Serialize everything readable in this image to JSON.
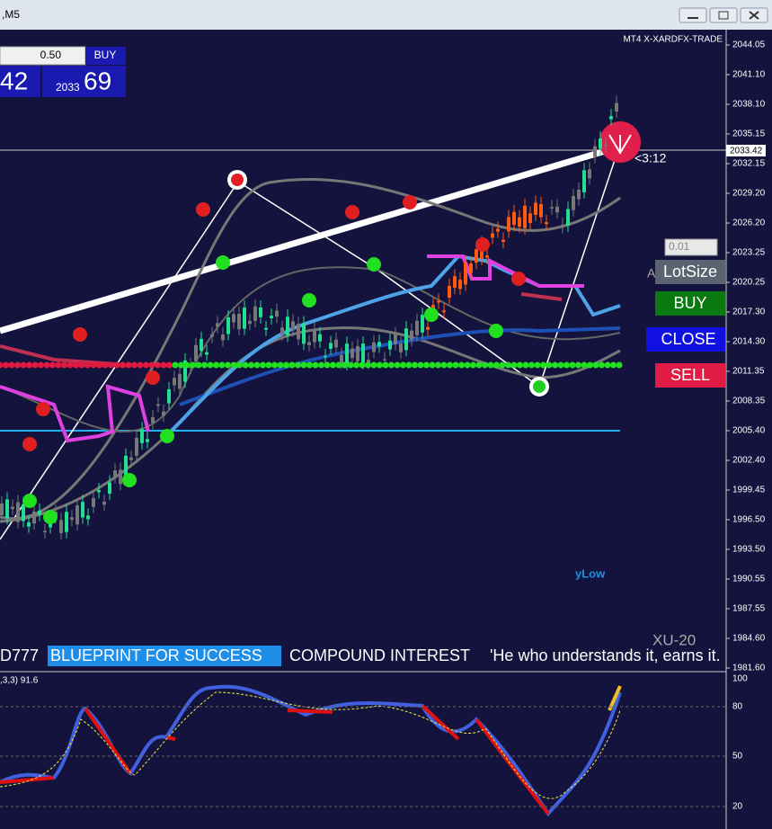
{
  "window": {
    "title": ",M5"
  },
  "trade_panel": {
    "lot": "0.50",
    "buy": "BUY",
    "bid": "42",
    "ask_prefix": "2033",
    "ask": "69"
  },
  "chart": {
    "label": "MT4 X-XARDFX-TRADE",
    "current_price": "2033.42",
    "timer": "<3:12",
    "ylow": "yLow",
    "symbol": "XU-20"
  },
  "price_axis": [
    "2044.05",
    "2041.10",
    "2038.10",
    "2035.15",
    "2032.15",
    "2029.20",
    "2026.20",
    "2023.25",
    "2020.25",
    "2017.30",
    "2014.30",
    "2011.35",
    "2008.35",
    "2005.40",
    "2002.40",
    "1999.45",
    "1996.50",
    "1993.50",
    "1990.55",
    "1987.55",
    "1984.60",
    "1981.60"
  ],
  "controls": {
    "lot_input": "0.01",
    "prefix": "A",
    "lot_label": "LotSize",
    "buy": "BUY",
    "close": "CLOSE",
    "sell": "SELL"
  },
  "ticker": [
    "D777",
    "BLUEPRINT FOR SUCCESS",
    "COMPOUND INTEREST",
    "'He who understands it, earns it."
  ],
  "indicator": {
    "label": ",3,3)  91.6",
    "axis": [
      "100",
      "80",
      "50",
      "20"
    ]
  }
}
